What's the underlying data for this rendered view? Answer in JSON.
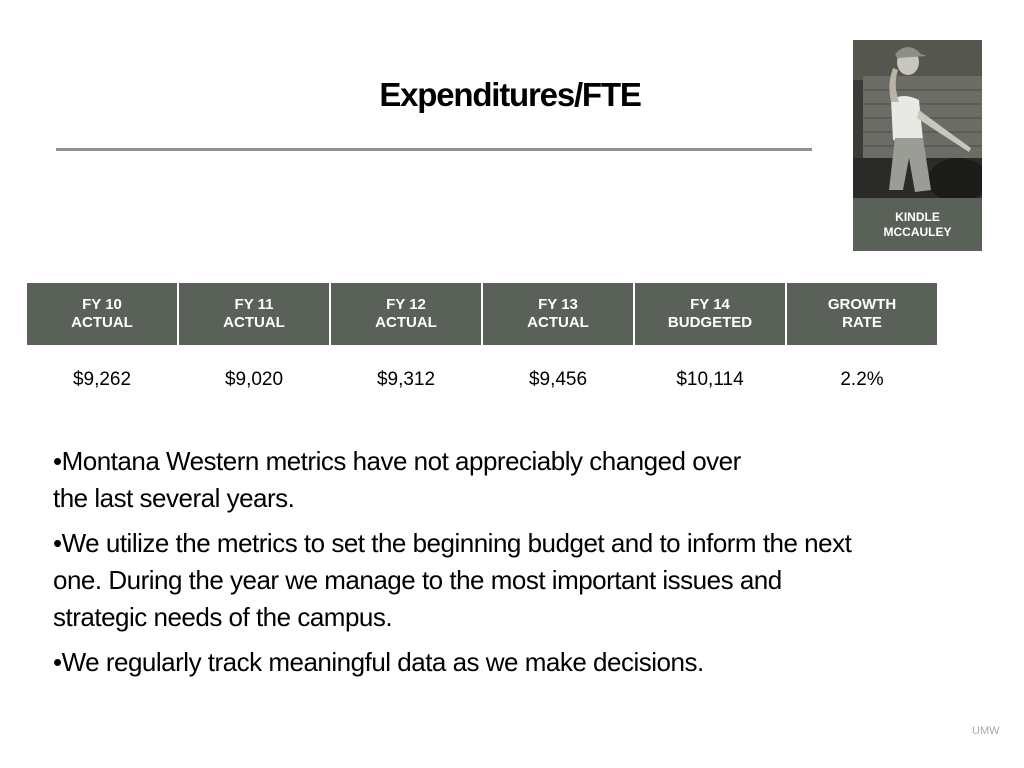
{
  "slide": {
    "title": "Expenditures/FTE",
    "footer": "UMW"
  },
  "photo_card": {
    "caption_line1": "KINDLE",
    "caption_line2": "MCCAULEY"
  },
  "table": {
    "headers": [
      {
        "line1": "FY 10",
        "line2": "ACTUAL"
      },
      {
        "line1": "FY 11",
        "line2": "ACTUAL"
      },
      {
        "line1": "FY 12",
        "line2": "ACTUAL"
      },
      {
        "line1": "FY 13",
        "line2": "ACTUAL"
      },
      {
        "line1": "FY 14",
        "line2": "BUDGETED"
      },
      {
        "line1": "GROWTH",
        "line2": "RATE"
      }
    ],
    "values": [
      "$9,262",
      "$9,020",
      "$9,312",
      "$9,456",
      "$10,114",
      "2.2%"
    ]
  },
  "bullets": [
    "•Montana Western metrics have not appreciably changed over the last several years.",
    "•We utilize the metrics to set the beginning budget and to inform the next one. During the year we manage to the most important issues and strategic needs of the campus.",
    "•We regularly track meaningful data as we make decisions."
  ],
  "colors": {
    "header_fill": "#5a6159",
    "rule": "#8f938c"
  }
}
